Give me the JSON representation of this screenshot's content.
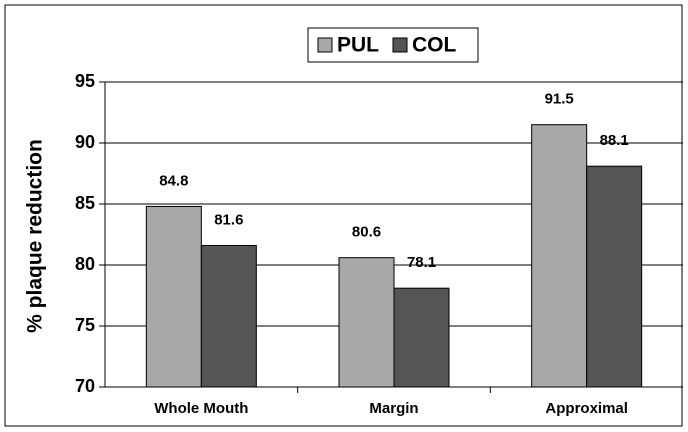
{
  "chart_data": {
    "type": "bar",
    "categories": [
      "Whole Mouth",
      "Margin",
      "Approximal"
    ],
    "series": [
      {
        "name": "PUL",
        "color": "#a8a8a8",
        "values": [
          84.8,
          80.6,
          91.5
        ]
      },
      {
        "name": "COL",
        "color": "#555555",
        "values": [
          81.6,
          78.1,
          88.1
        ]
      }
    ],
    "y_label": "% plaque reduction",
    "ylim": [
      70,
      95
    ],
    "yticks": [
      70,
      75,
      80,
      85,
      90,
      95
    ],
    "grid": true,
    "legend": "top"
  }
}
